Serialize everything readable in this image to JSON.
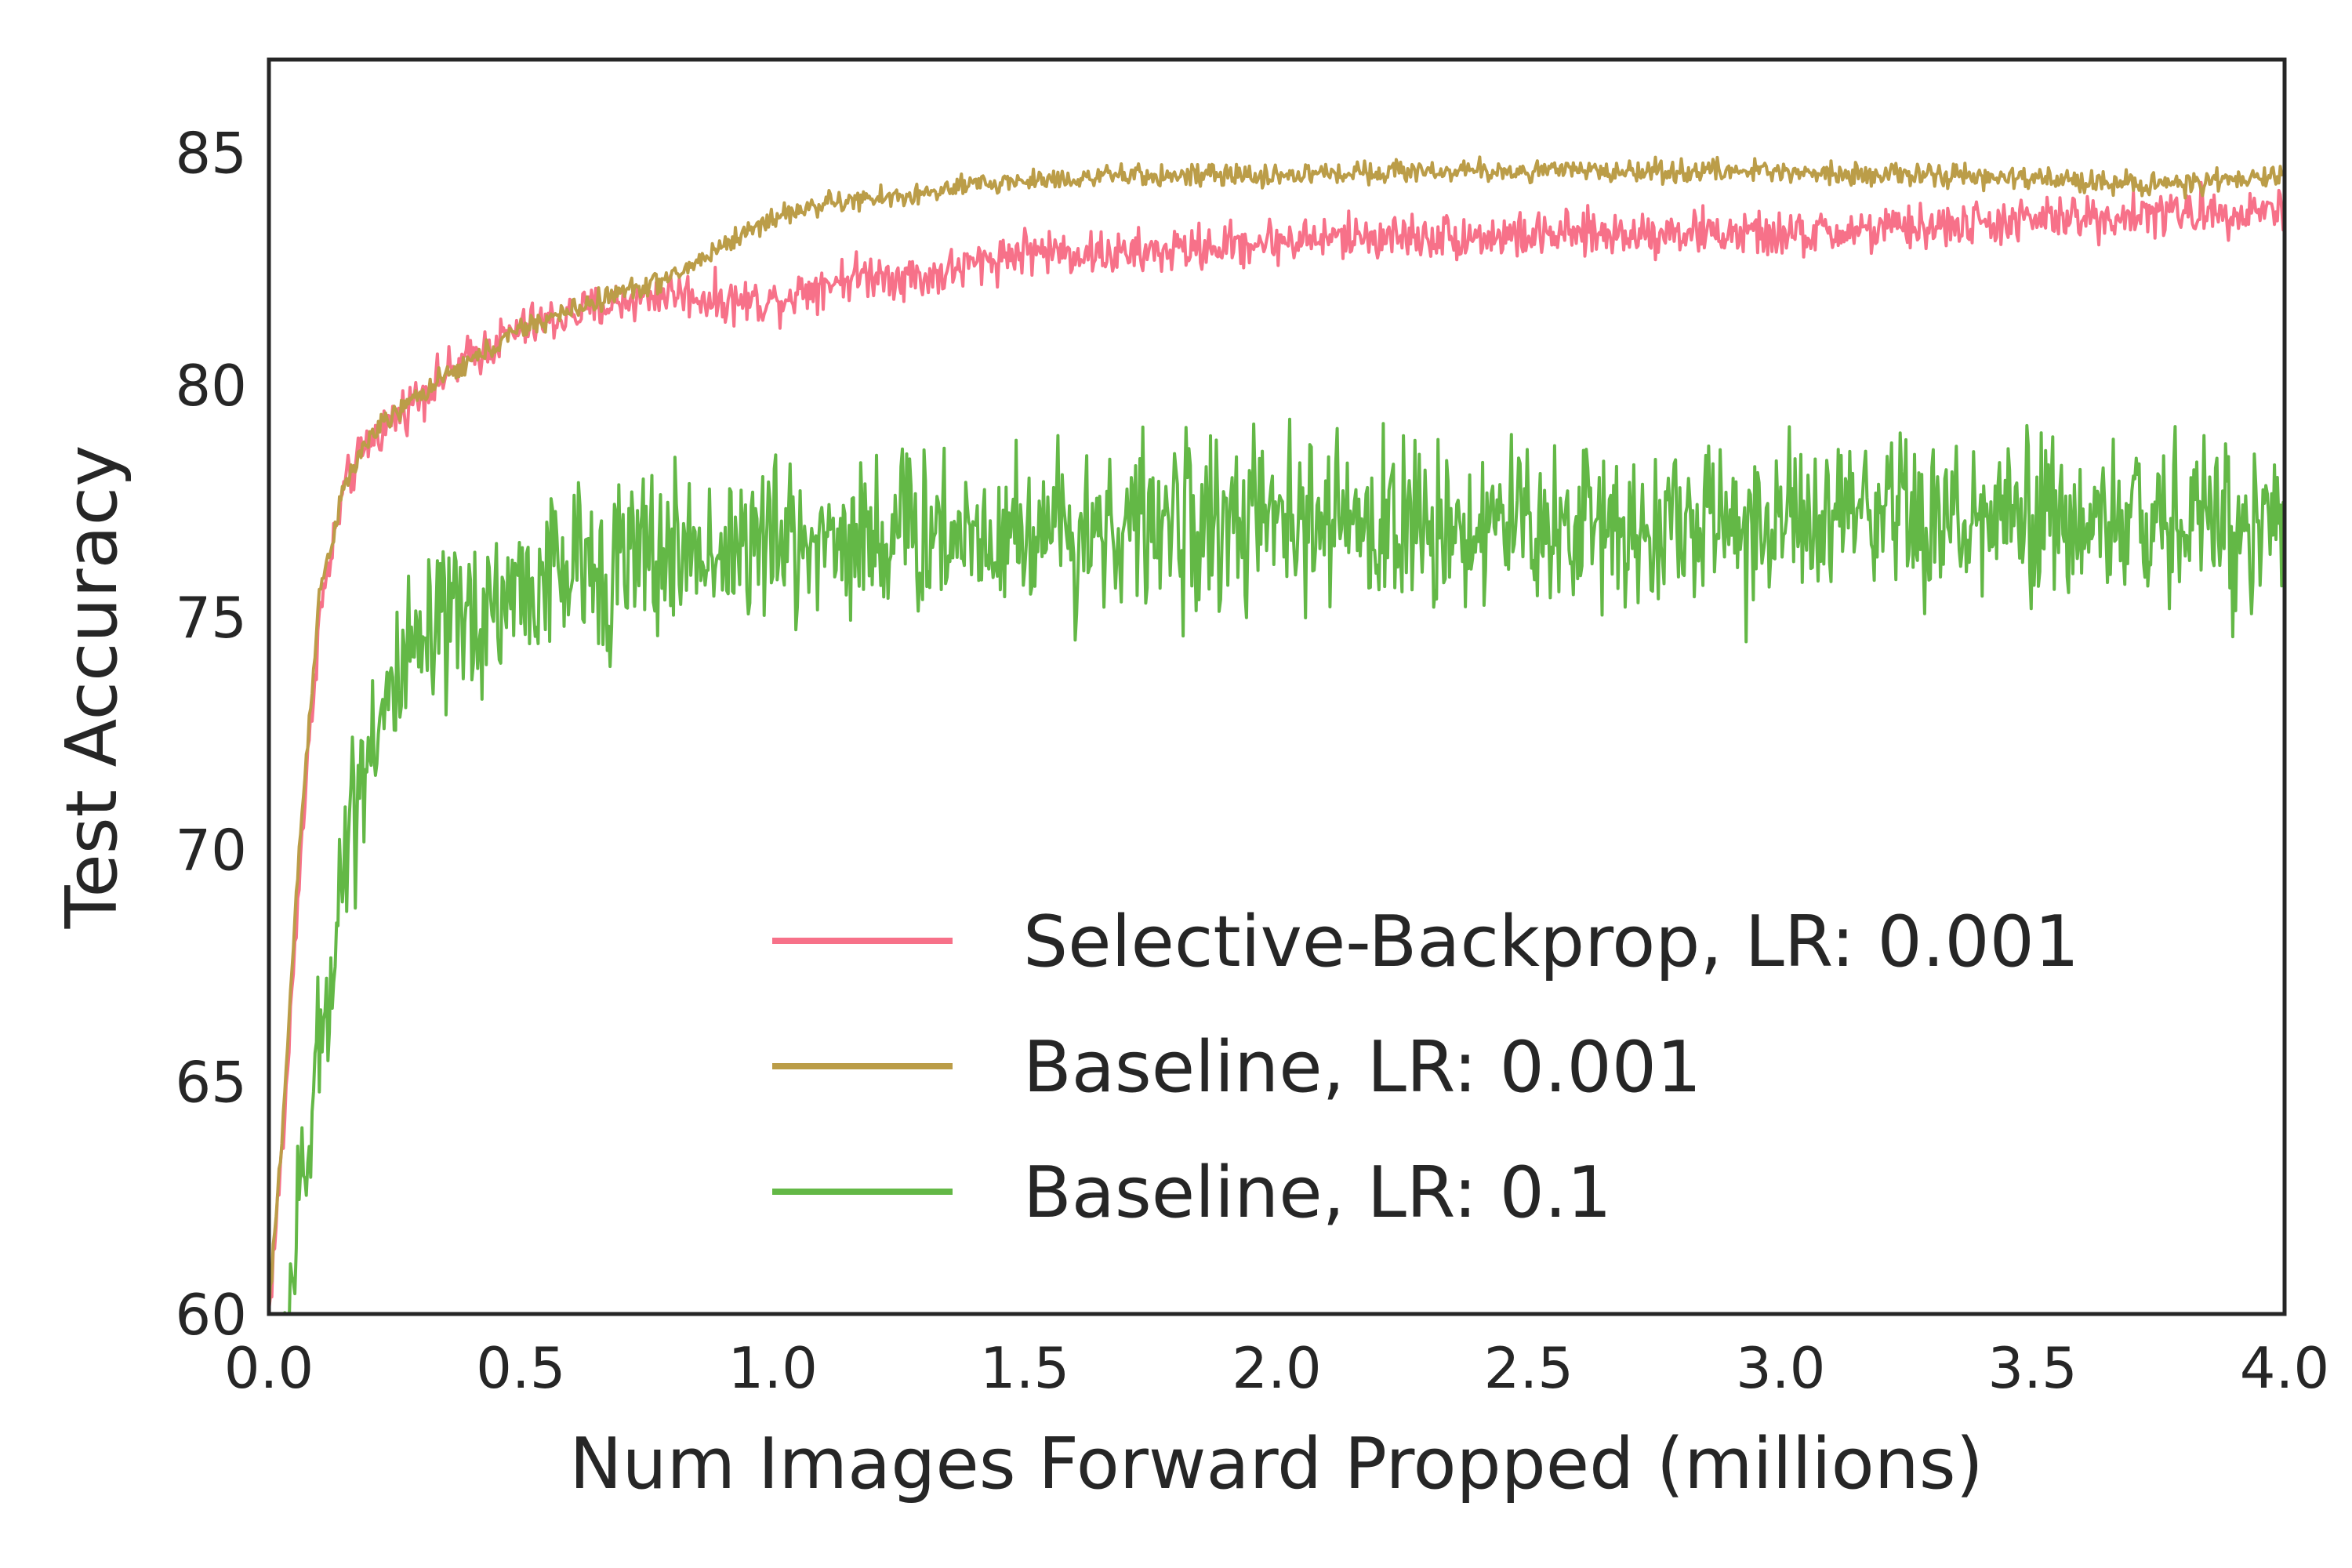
{
  "chart_data": {
    "type": "line",
    "xlabel": "Num Images Forward Propped (millions)",
    "ylabel": "Test Accuracy",
    "xlim": [
      0.0,
      4.0
    ],
    "ylim": [
      60,
      87
    ],
    "xticks": [
      "0.0",
      "0.5",
      "1.0",
      "1.5",
      "2.0",
      "2.5",
      "3.0",
      "3.5",
      "4.0"
    ],
    "yticks": [
      "60",
      "65",
      "70",
      "75",
      "80",
      "85"
    ],
    "grid": false,
    "legend_position": "bottom-right",
    "series": [
      {
        "name": "Selective-Backprop, LR: 0.001",
        "color": "#f77189",
        "noise": 0.45,
        "x": [
          0.0,
          0.03,
          0.06,
          0.1,
          0.15,
          0.2,
          0.3,
          0.4,
          0.5,
          0.6,
          0.7,
          0.8,
          0.9,
          1.0,
          1.1,
          1.2,
          1.3,
          1.4,
          1.5,
          1.7,
          2.0,
          2.2,
          2.5,
          2.8,
          3.0,
          3.3,
          3.6,
          3.8,
          4.0
        ],
        "y": [
          60.0,
          64.0,
          69.5,
          75.0,
          77.8,
          78.8,
          79.8,
          80.6,
          81.2,
          81.5,
          81.8,
          82.0,
          81.8,
          81.8,
          82.2,
          82.4,
          82.3,
          82.6,
          82.9,
          82.8,
          83.1,
          83.2,
          83.2,
          83.3,
          83.2,
          83.4,
          83.6,
          83.7,
          83.8
        ]
      },
      {
        "name": "Baseline, LR: 0.001",
        "color": "#bb9d48",
        "noise": 0.22,
        "x": [
          0.0,
          0.03,
          0.06,
          0.1,
          0.15,
          0.2,
          0.3,
          0.4,
          0.5,
          0.6,
          0.7,
          0.8,
          0.9,
          1.0,
          1.1,
          1.2,
          1.3,
          1.4,
          1.5,
          1.7,
          2.0,
          2.2,
          2.5,
          2.8,
          3.0,
          3.3,
          3.6,
          3.8,
          4.0
        ],
        "y": [
          60.0,
          64.5,
          70.0,
          75.5,
          77.8,
          78.9,
          79.8,
          80.5,
          81.2,
          81.6,
          82.0,
          82.3,
          83.0,
          83.6,
          83.9,
          84.0,
          84.1,
          84.3,
          84.4,
          84.5,
          84.5,
          84.6,
          84.6,
          84.6,
          84.6,
          84.5,
          84.4,
          84.3,
          84.5
        ]
      },
      {
        "name": "Baseline, LR: 0.1",
        "color": "#63b846",
        "noise": 1.7,
        "x": [
          0.0,
          0.03,
          0.06,
          0.1,
          0.15,
          0.2,
          0.3,
          0.4,
          0.5,
          0.6,
          0.8,
          1.0,
          1.2,
          1.5,
          1.8,
          2.0,
          2.3,
          2.5,
          3.0,
          3.5,
          4.0
        ],
        "y": [
          56.0,
          59.5,
          62.0,
          65.5,
          70.0,
          72.5,
          74.2,
          75.0,
          75.6,
          76.0,
          76.4,
          76.6,
          76.8,
          76.9,
          77.0,
          77.0,
          77.0,
          77.0,
          77.0,
          77.0,
          77.1
        ]
      }
    ]
  }
}
